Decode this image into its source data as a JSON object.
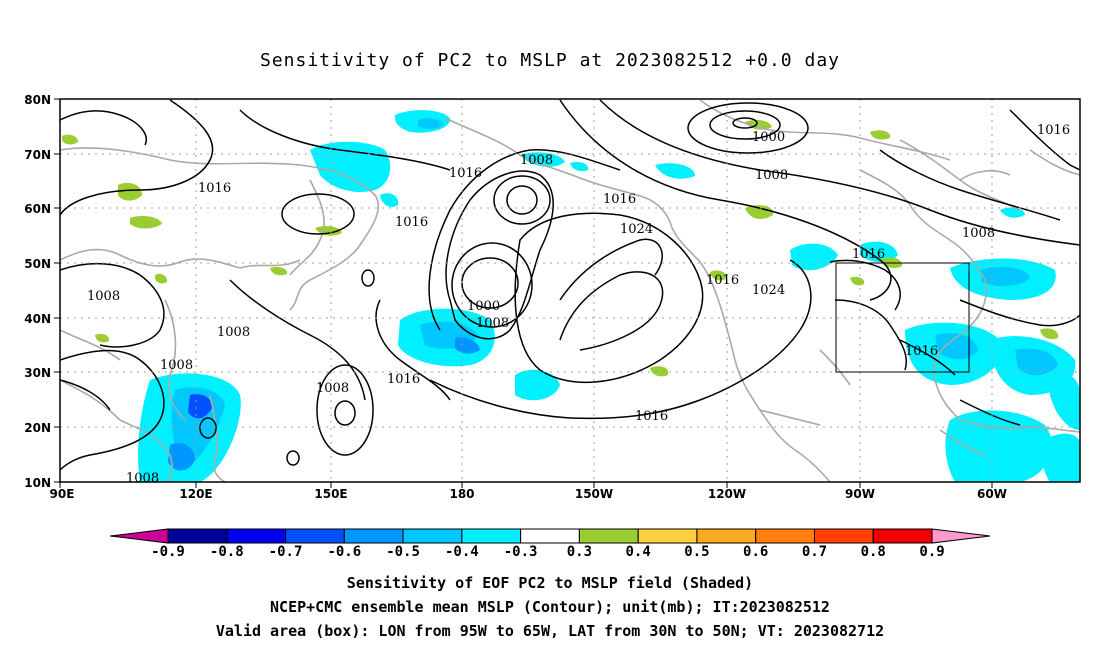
{
  "title": "Sensitivity of PC2 to MSLP at 2023082512 +0.0 day",
  "lat_labels": [
    "80N",
    "70N",
    "60N",
    "50N",
    "40N",
    "30N",
    "20N",
    "10N"
  ],
  "lon_labels": [
    "90E",
    "120E",
    "150E",
    "180",
    "150W",
    "120W",
    "90W",
    "60W"
  ],
  "contour_labels": [
    {
      "text": "1000"
    },
    {
      "text": "1008"
    },
    {
      "text": "1016"
    },
    {
      "text": "1016"
    },
    {
      "text": "1016"
    },
    {
      "text": "1008"
    },
    {
      "text": "1016"
    },
    {
      "text": "1024"
    },
    {
      "text": "1016"
    },
    {
      "text": "1008"
    },
    {
      "text": "1016"
    },
    {
      "text": "1008"
    },
    {
      "text": "1016"
    },
    {
      "text": "1024"
    },
    {
      "text": "1016"
    },
    {
      "text": "1016"
    },
    {
      "text": "1008"
    },
    {
      "text": "1008"
    },
    {
      "text": "1008"
    },
    {
      "text": "1000"
    },
    {
      "text": "1008"
    },
    {
      "text": "1008"
    },
    {
      "text": "1016"
    }
  ],
  "colorbar": {
    "labels": [
      "-0.9",
      "-0.8",
      "-0.7",
      "-0.6",
      "-0.5",
      "-0.4",
      "-0.3",
      "0.3",
      "0.4",
      "0.5",
      "0.6",
      "0.7",
      "0.8",
      "0.9"
    ],
    "colors": [
      "#00009a",
      "#0000f0",
      "#0050ff",
      "#0096ff",
      "#00c8ff",
      "#00f0ff",
      "#ffffff",
      "#9acd32",
      "#ffd040",
      "#ffaa20",
      "#ff7f10",
      "#ff4000",
      "#f00000"
    ],
    "left_arrow_color": "#cc0099",
    "right_arrow_color": "#ff99cc"
  },
  "captions": {
    "line1": "Sensitivity of EOF PC2 to MSLP field (Shaded)",
    "line2": "NCEP+CMC ensemble mean MSLP (Contour); unit(mb); IT:2023082512",
    "line3": "Valid area (box): LON from 95W to 65W, LAT from 30N to 50N; VT: 2023082712"
  }
}
